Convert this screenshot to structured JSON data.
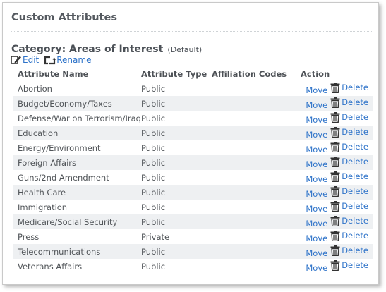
{
  "panel": {
    "title": "Custom Attributes"
  },
  "category": {
    "heading": "Category: Areas of Interest",
    "default_label": "(Default)",
    "edit_label": "Edit",
    "rename_label": "Rename"
  },
  "table": {
    "headers": {
      "name": "Attribute Name",
      "type": "Attribute Type",
      "affiliation": "Affiliation Codes",
      "action": "Action"
    },
    "move_label": "Move",
    "delete_label": "Delete",
    "rows": [
      {
        "name": "Abortion",
        "type": "Public",
        "affiliation": ""
      },
      {
        "name": "Budget/Economy/Taxes",
        "type": "Public",
        "affiliation": ""
      },
      {
        "name": "Defense/War on Terrorism/Iraq",
        "type": "Public",
        "affiliation": ""
      },
      {
        "name": "Education",
        "type": "Public",
        "affiliation": ""
      },
      {
        "name": "Energy/Environment",
        "type": "Public",
        "affiliation": ""
      },
      {
        "name": "Foreign Affairs",
        "type": "Public",
        "affiliation": ""
      },
      {
        "name": "Guns/2nd Amendment",
        "type": "Public",
        "affiliation": ""
      },
      {
        "name": "Health Care",
        "type": "Public",
        "affiliation": ""
      },
      {
        "name": "Immigration",
        "type": "Public",
        "affiliation": ""
      },
      {
        "name": "Medicare/Social Security",
        "type": "Public",
        "affiliation": ""
      },
      {
        "name": "Press",
        "type": "Private",
        "affiliation": ""
      },
      {
        "name": "Telecommunications",
        "type": "Public",
        "affiliation": ""
      },
      {
        "name": "Veterans Affairs",
        "type": "Public",
        "affiliation": ""
      }
    ]
  },
  "icons": {
    "edit": "pencil-edit-icon",
    "rename": "rename-arrow-icon",
    "delete": "trash-icon"
  },
  "colors": {
    "link": "#2e73c9",
    "heading": "#555a60",
    "row_stripe": "#eef0f2",
    "icon": "#333333"
  }
}
